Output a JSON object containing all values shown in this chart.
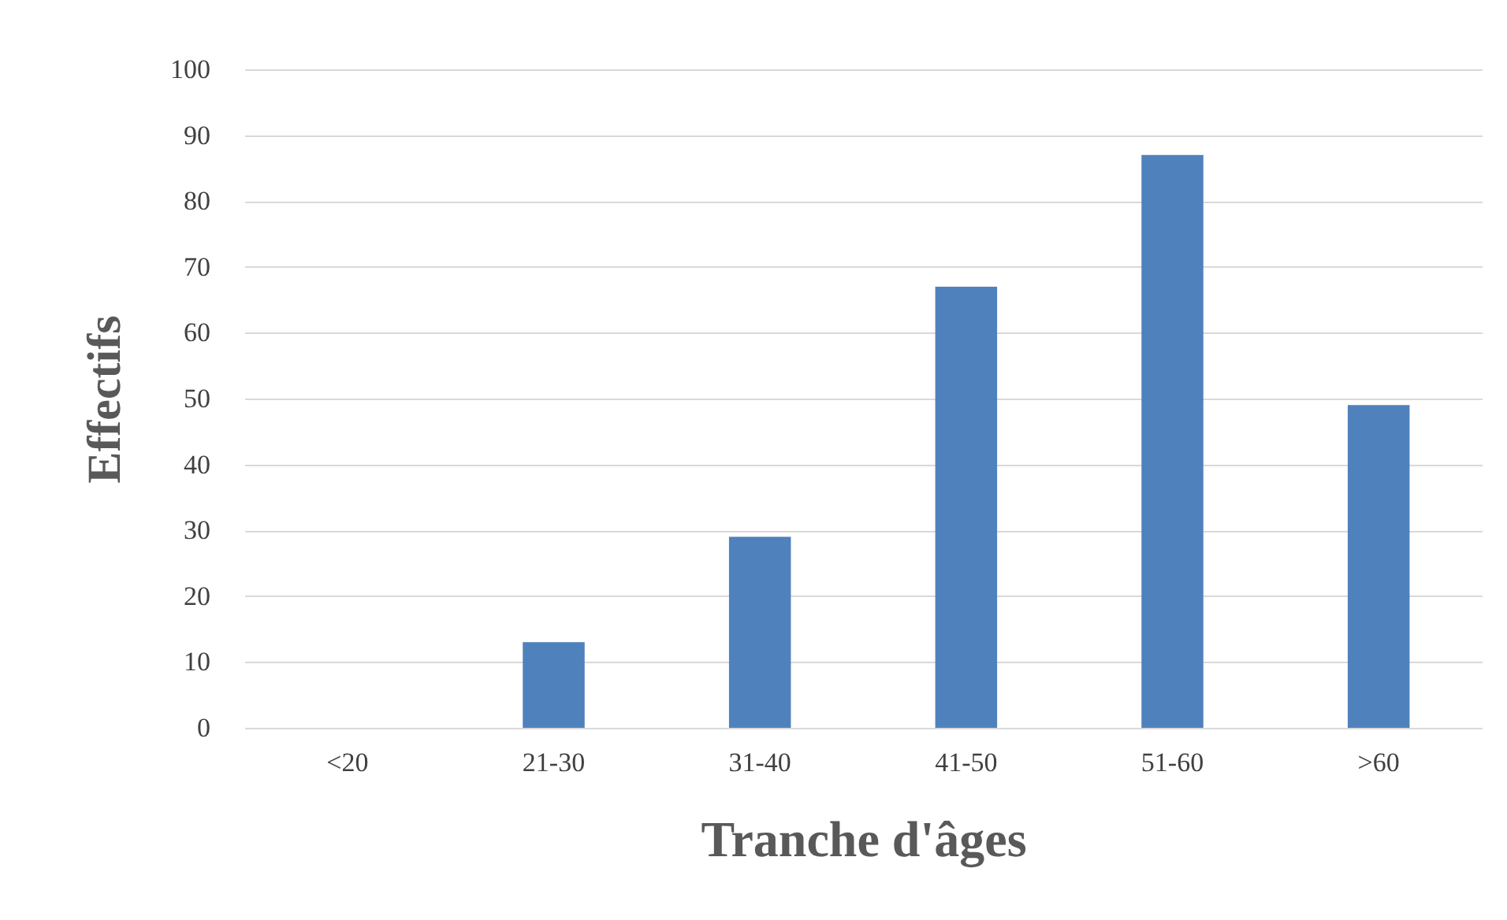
{
  "chart_data": {
    "type": "bar",
    "xlabel": "Tranche d'âges",
    "ylabel": "Effectifs",
    "categories": [
      "<20",
      "21-30",
      "31-40",
      "41-50",
      "51-60",
      ">60"
    ],
    "values": [
      0,
      13,
      29,
      67,
      87,
      49
    ],
    "color": "#4f81bd",
    "ylim": [
      0,
      100
    ],
    "yticks": [
      0,
      10,
      20,
      30,
      40,
      50,
      60,
      70,
      80,
      90,
      100
    ],
    "grid": "y"
  }
}
